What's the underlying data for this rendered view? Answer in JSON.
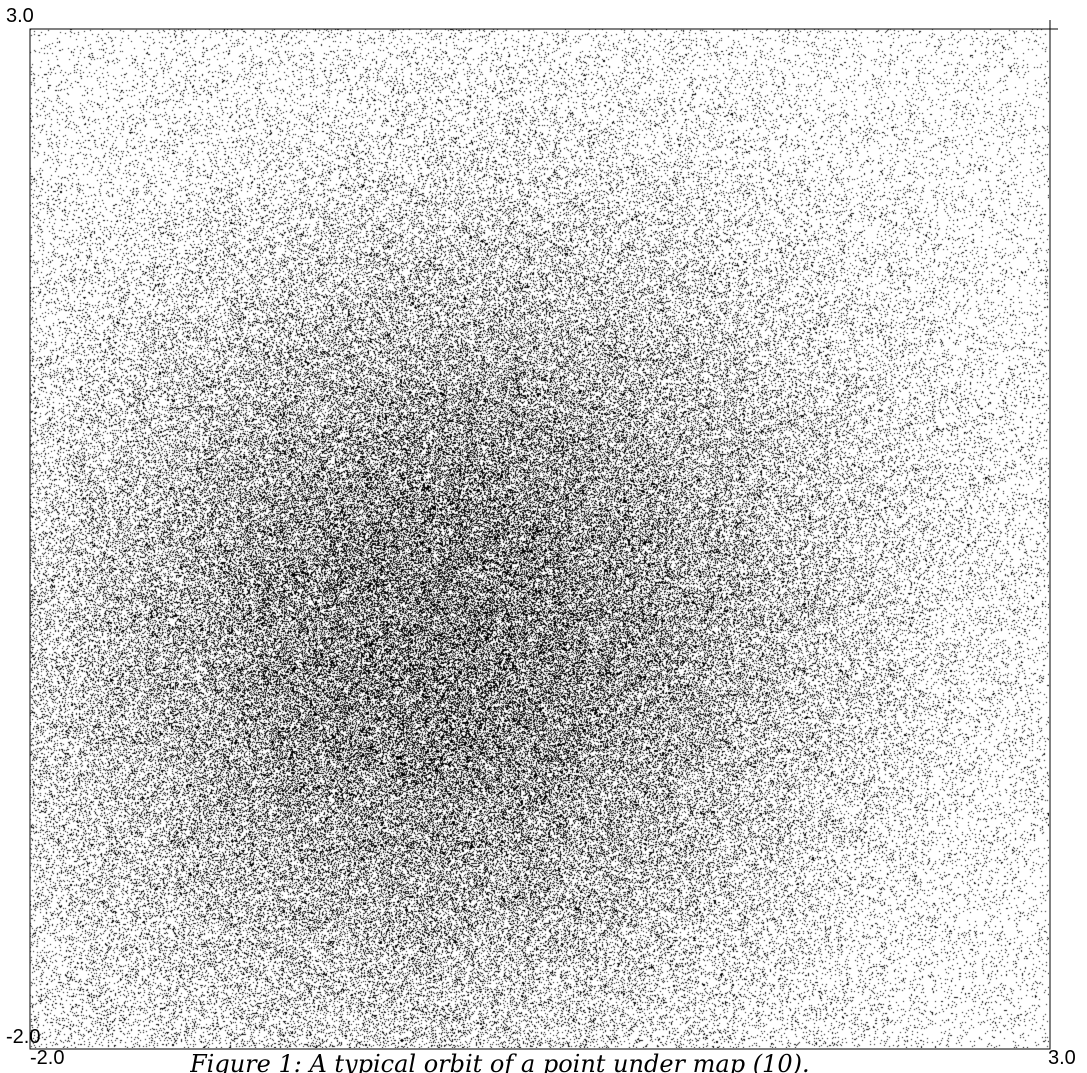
{
  "chart_data": {
    "type": "scatter",
    "title": "",
    "xlabel": "",
    "ylabel": "",
    "xlim": [
      -2.0,
      3.0
    ],
    "ylim": [
      -2.0,
      3.0
    ],
    "grid": false,
    "point_color": "#000000",
    "density_peaks": [
      {
        "x": -0.05,
        "y": 0.1
      },
      {
        "x": 0.5,
        "y": 0.35
      },
      {
        "x": -0.3,
        "y": -0.3
      }
    ],
    "tick_labels": {
      "x_min": "-2.0",
      "x_max": "3.0",
      "y_min": "-2.0",
      "y_max": "3.0"
    },
    "caption": "Figure 1: A typical orbit of a point under map (10)."
  }
}
